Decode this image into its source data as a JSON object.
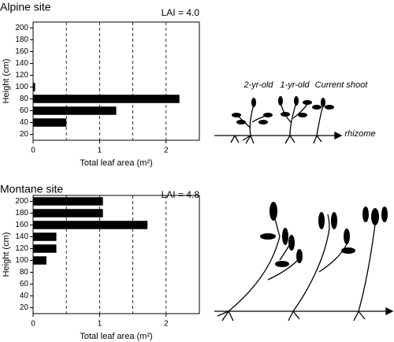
{
  "chart_data": [
    {
      "type": "bar",
      "orientation": "horizontal",
      "title": "Alpine site",
      "annotation": "LAI = 4.0",
      "ylabel": "Height (cm)",
      "xlabel": "Total leaf area (m²)",
      "y": [
        40,
        60,
        80,
        100
      ],
      "values": [
        0.5,
        1.25,
        2.2,
        0.03
      ],
      "color": "#000000",
      "xlim": [
        0,
        2.5
      ],
      "xticks": [
        0,
        1,
        2
      ],
      "gridlines_x": [
        0.5,
        1,
        1.5,
        2
      ],
      "ylim": [
        10,
        210
      ],
      "yticks": [
        20,
        40,
        60,
        80,
        100,
        120,
        140,
        160,
        180,
        200
      ]
    },
    {
      "type": "bar",
      "orientation": "horizontal",
      "title": "Montane site",
      "annotation": "LAI = 4.8",
      "ylabel": "Height (cm)",
      "xlabel": "Total leaf area (m²)",
      "y": [
        100,
        120,
        140,
        160,
        180,
        200
      ],
      "values": [
        0.2,
        0.35,
        0.35,
        1.72,
        1.05,
        1.05
      ],
      "color": "#000000",
      "xlim": [
        0,
        2.5
      ],
      "xticks": [
        0,
        1,
        2
      ],
      "gridlines_x": [
        0.5,
        1,
        1.5,
        2
      ],
      "ylim": [
        10,
        210
      ],
      "yticks": [
        20,
        40,
        60,
        80,
        100,
        120,
        140,
        160,
        180,
        200
      ]
    }
  ],
  "illustration": {
    "labels": [
      "2-yr-old",
      "1-yr-old",
      "Current shoot",
      "rhizome"
    ]
  }
}
